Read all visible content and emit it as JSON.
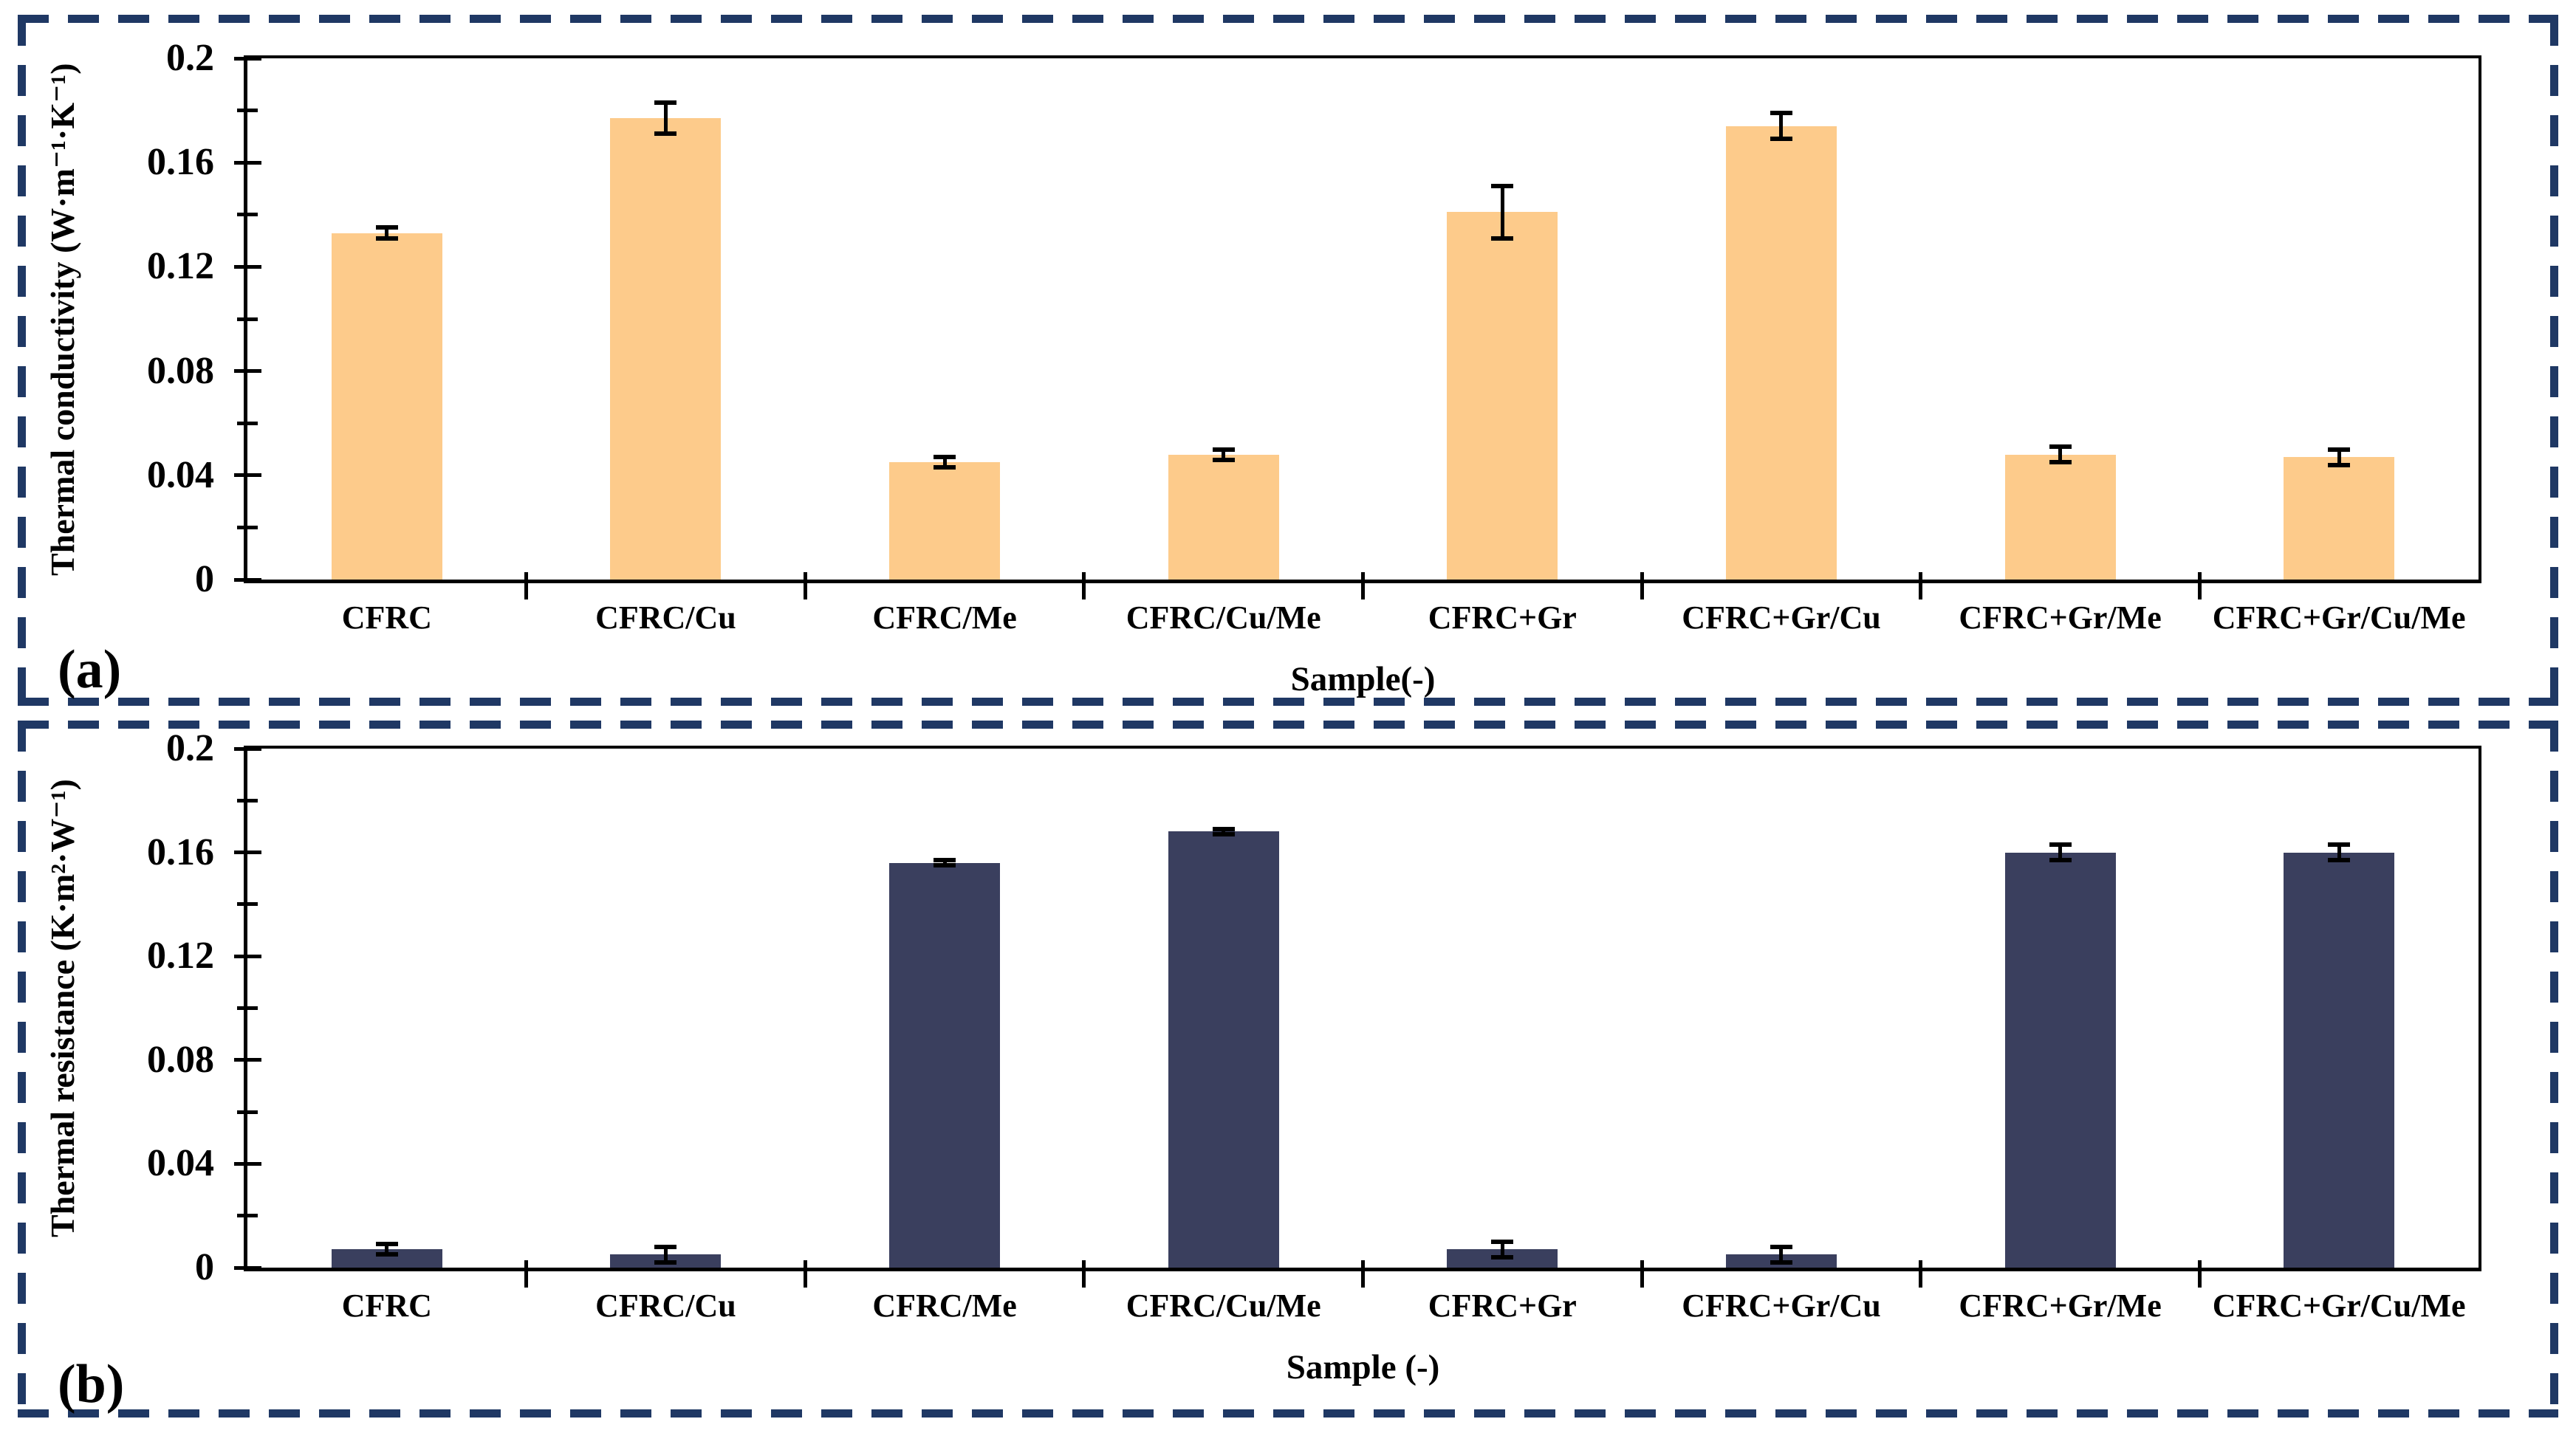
{
  "figure": {
    "border_color": "#1f3864",
    "axis_color": "#000000",
    "background_color": "#ffffff"
  },
  "chart_data": [
    {
      "type": "bar",
      "panel_label": "(a)",
      "xlabel": "Sample(-)",
      "ylabel": "Thermal conductivity (W·m⁻¹·K⁻¹)",
      "ylim": [
        0,
        0.2
      ],
      "ytick_step": 0.04,
      "yminor_step": 0.02,
      "grid": "off",
      "legend": "none",
      "bar_color": "#fdcb8b",
      "error_color": "#000000",
      "categories": [
        "CFRC",
        "CFRC/Cu",
        "CFRC/Me",
        "CFRC/Cu/Me",
        "CFRC+Gr",
        "CFRC+Gr/Cu",
        "CFRC+Gr/Me",
        "CFRC+Gr/Cu/Me"
      ],
      "values": [
        0.133,
        0.177,
        0.045,
        0.048,
        0.141,
        0.174,
        0.048,
        0.047
      ],
      "errors": [
        0.002,
        0.006,
        0.002,
        0.002,
        0.01,
        0.005,
        0.003,
        0.003
      ]
    },
    {
      "type": "bar",
      "panel_label": "(b)",
      "xlabel": "Sample  (-)",
      "ylabel": "Thermal resistance (K·m²·W⁻¹)",
      "ylim": [
        0,
        0.2
      ],
      "ytick_step": 0.04,
      "yminor_step": 0.02,
      "grid": "off",
      "legend": "none",
      "bar_color": "#3a3f5e",
      "error_color": "#000000",
      "categories": [
        "CFRC",
        "CFRC/Cu",
        "CFRC/Me",
        "CFRC/Cu/Me",
        "CFRC+Gr",
        "CFRC+Gr/Cu",
        "CFRC+Gr/Me",
        "CFRC+Gr/Cu/Me"
      ],
      "values": [
        0.007,
        0.005,
        0.156,
        0.168,
        0.007,
        0.005,
        0.16,
        0.16
      ],
      "errors": [
        0.002,
        0.003,
        0.001,
        0.001,
        0.003,
        0.003,
        0.003,
        0.003
      ]
    }
  ]
}
